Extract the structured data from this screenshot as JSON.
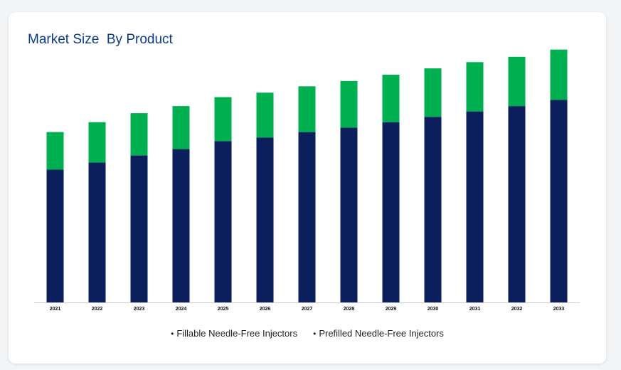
{
  "title": "Market Size  By Product",
  "chart_data": {
    "type": "bar",
    "stacked": true,
    "categories": [
      "2021",
      "2022",
      "2023",
      "2024",
      "2025",
      "2026",
      "2027",
      "2028",
      "2029",
      "2030",
      "2031",
      "2032",
      "2033"
    ],
    "series": [
      {
        "name": "Fillable Needle-Free Injectors",
        "color": "#0a1f5c",
        "values": [
          148,
          156,
          164,
          171,
          180,
          184,
          190,
          195,
          201,
          207,
          213,
          219,
          226
        ]
      },
      {
        "name": "Prefilled Needle-Free Injectors",
        "color": "#00b050",
        "values": [
          42,
          45,
          47,
          48,
          49,
          50,
          51,
          52,
          53,
          54,
          55,
          55,
          56
        ]
      }
    ],
    "ylim": [
      0,
      300
    ],
    "grid": false,
    "legend_position": "bottom"
  },
  "legend": {
    "bullet": "•"
  }
}
